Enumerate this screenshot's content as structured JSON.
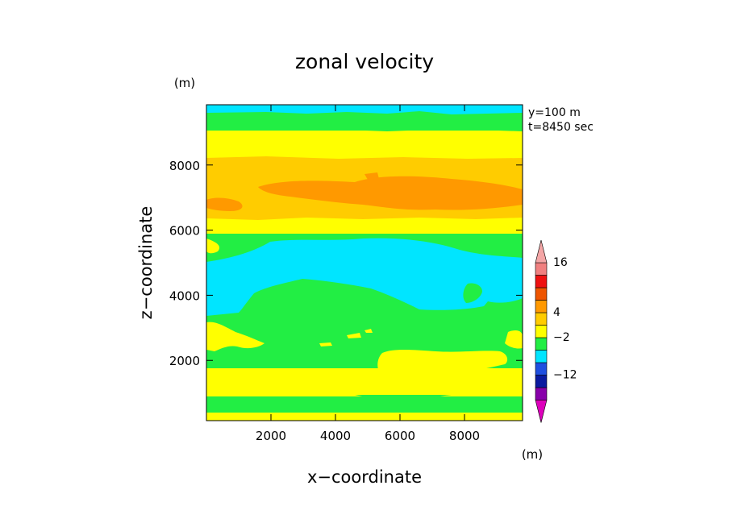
{
  "chart_data": {
    "type": "heatmap",
    "title": "zonal velocity",
    "xlabel": "x−coordinate",
    "ylabel": "z−coordinate",
    "y_unit": "(m)",
    "colorbar_unit": "(m)",
    "annotation_lines": [
      "y=100 m",
      "t=8450 sec"
    ],
    "xlim": [
      0,
      9800
    ],
    "ylim": [
      150,
      9850
    ],
    "x_ticks": [
      2000,
      4000,
      6000,
      8000
    ],
    "y_ticks": [
      2000,
      4000,
      6000,
      8000
    ],
    "colorbar": {
      "colors": [
        "#dd00bb",
        "#8800aa",
        "#0a1aa0",
        "#1f4fe0",
        "#00e5ff",
        "#22ee44",
        "#ffff00",
        "#ffcc00",
        "#ff9900",
        "#ee5500",
        "#ee1111",
        "#f08080",
        "#f4a6a6"
      ],
      "tick_labels": [
        "−12",
        "−2",
        "4",
        "16"
      ],
      "extend": "both"
    },
    "bands": [
      {
        "z_bottom": 150,
        "z_top": 300,
        "level": "4"
      },
      {
        "z_bottom": 300,
        "z_top": 800,
        "level": "2"
      },
      {
        "z_bottom": 800,
        "z_top": 1550,
        "level": "4"
      },
      {
        "z_bottom": 1550,
        "z_top": 3300,
        "level": "2"
      },
      {
        "z_bottom": 3300,
        "z_top": 5600,
        "level": "0"
      },
      {
        "z_bottom": 5600,
        "z_top": 5900,
        "level": "2"
      },
      {
        "z_bottom": 5900,
        "z_top": 6300,
        "level": "4"
      },
      {
        "z_bottom": 6300,
        "z_top": 6800,
        "level": "6"
      },
      {
        "z_bottom": 6800,
        "z_top": 7700,
        "level": "8"
      },
      {
        "z_bottom": 7700,
        "z_top": 8300,
        "level": "6"
      },
      {
        "z_bottom": 8300,
        "z_top": 9150,
        "level": "4"
      },
      {
        "z_bottom": 9150,
        "z_top": 9650,
        "level": "2"
      },
      {
        "z_bottom": 9650,
        "z_top": 9850,
        "level": "0"
      }
    ]
  }
}
